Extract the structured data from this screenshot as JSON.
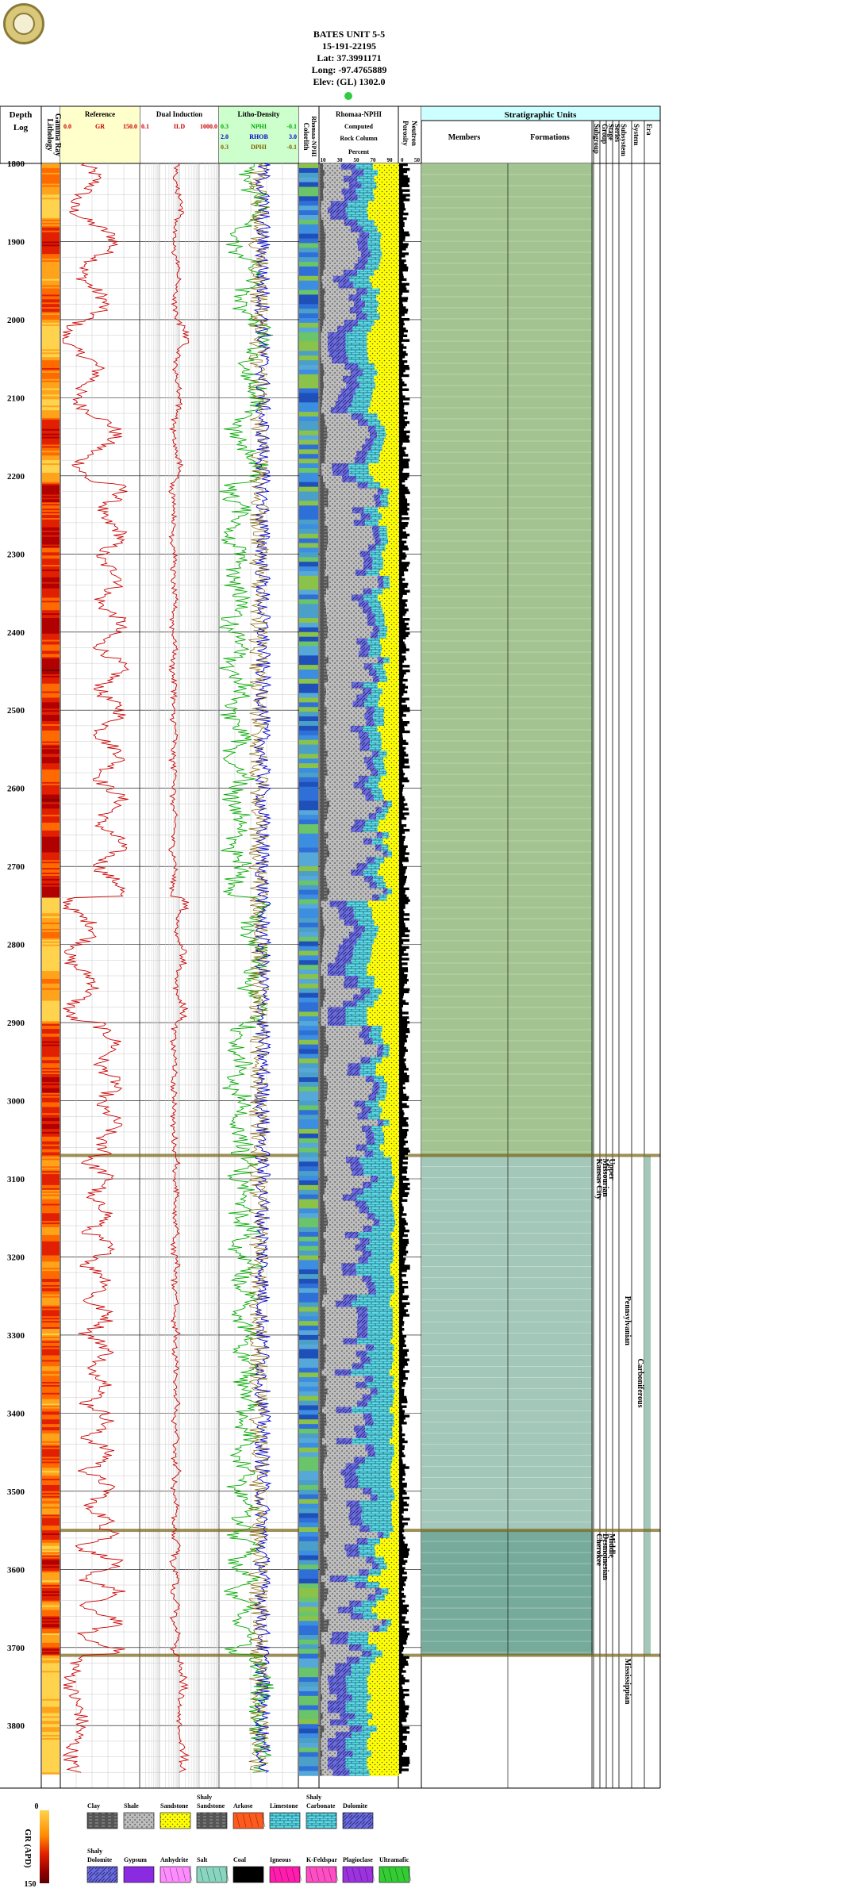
{
  "well": {
    "name": "BATES UNIT 5-5",
    "api": "15-191-22195",
    "lat": "Lat: 37.3991171",
    "long": "Long: -97.4765889",
    "elev": "Elev: (GL) 1302.0"
  },
  "colors": {
    "reference_fill": "#ffffcc",
    "lithodensity_fill": "#ccffcc",
    "strat_fill": "#ccffff",
    "members_upper": "#a3c490",
    "members_kansas_city": "#a3c7b8",
    "members_cherokee": "#76ab9c",
    "gr_curve": "#cc0000",
    "nphi_curve": "#00aa00",
    "rhob_curve": "#0000cc",
    "dphi_curve": "#806000"
  },
  "tracks": {
    "depth": {
      "title1": "Depth",
      "title2": "Log"
    },
    "lithology": {
      "title": "Lithology",
      "subtitle": "Gamma Ray"
    },
    "reference": {
      "title": "Reference",
      "min": "0.0",
      "curve": "GR",
      "max": "150.0"
    },
    "induction": {
      "title": "Dual Induction",
      "min": "0.1",
      "curve": "ILD",
      "max": "1000.0"
    },
    "lithodensity": {
      "title": "Litho-Density",
      "curves": [
        {
          "min": "0.3",
          "name": "NPHI",
          "max": "-0.1"
        },
        {
          "min": "2.0",
          "name": "RHOB",
          "max": "3.0"
        },
        {
          "min": "0.3",
          "name": "DPHI",
          "max": "-0.1"
        }
      ]
    },
    "colorlith": {
      "title": "Colorlith",
      "subtitle": "Rhomaa-NPHI"
    },
    "rockcolumn": {
      "title": "Rhomaa-NPHI",
      "line2": "Computed",
      "line3": "Rock Column",
      "line4": "Percent",
      "ticks": [
        "10",
        "30",
        "50",
        "70",
        "90"
      ]
    },
    "porosity": {
      "title": "Porosity",
      "subtitle": "Neutron",
      "ticks": [
        "0",
        "50"
      ]
    },
    "strat": {
      "title": "Stratigraphic Units",
      "members": "Members",
      "formations": "Formations",
      "cols": [
        "Subgroup",
        "Group",
        "Stage",
        "Series",
        "Subsystem",
        "System",
        "Era"
      ]
    }
  },
  "chart_data": {
    "type": "well-log",
    "depth_range": [
      1800,
      3880
    ],
    "depth_ticks": [
      1800,
      1900,
      2000,
      2100,
      2200,
      2300,
      2400,
      2500,
      2600,
      2700,
      2800,
      2900,
      3000,
      3100,
      3200,
      3300,
      3400,
      3500,
      3600,
      3700,
      3800
    ],
    "formation_tops": [
      3070,
      3550,
      3710
    ],
    "strat_units": [
      {
        "label": "Kansas City",
        "col": "Group",
        "top": 3070,
        "bottom": 3550
      },
      {
        "label": "Missourian",
        "col": "Stage",
        "top": 3070,
        "bottom": 3550
      },
      {
        "label": "Upper",
        "col": "Series",
        "top": 3070,
        "bottom": 3550
      },
      {
        "label": "Cherokee",
        "col": "Group",
        "top": 3550,
        "bottom": 3710
      },
      {
        "label": "Desmoinesian",
        "col": "Stage",
        "top": 3550,
        "bottom": 3710
      },
      {
        "label": "Middle",
        "col": "Series",
        "top": 3550,
        "bottom": 3710
      },
      {
        "label": "Pennsylvanian",
        "col": "Subsystem",
        "top": 3070,
        "bottom": 3710
      },
      {
        "label": "Carboniferous",
        "col": "System",
        "top": 3070,
        "bottom": 3710
      },
      {
        "label": "Mississippian",
        "col": "Subsystem",
        "top": 3710,
        "bottom": 3880
      }
    ],
    "gr_apd_scale": {
      "label": "GR (APD)",
      "min": "0",
      "max": "150"
    }
  },
  "legend": {
    "row1": [
      {
        "label": "Clay",
        "color": "#b5b5b5",
        "pattern": "dash"
      },
      {
        "label": "Shale",
        "color": "#bdbdbd",
        "pattern": "dots"
      },
      {
        "label": "Sandstone",
        "color": "#ffff00",
        "pattern": "dots"
      },
      {
        "label": "Shaly Sandstone",
        "color": "#ffd200",
        "pattern": "dash"
      },
      {
        "label": "Arkose",
        "color": "#ff5a1e",
        "pattern": "cross"
      },
      {
        "label": "Limestone",
        "color": "#5cd8e6",
        "pattern": "brick"
      },
      {
        "label": "Shaly Carbonate",
        "color": "#49b8a8",
        "pattern": "brick"
      },
      {
        "label": "Dolomite",
        "color": "#6a6ae0",
        "pattern": "diag"
      }
    ],
    "row2": [
      {
        "label": "Shaly Dolomite",
        "color": "#3f52d0",
        "pattern": "diag"
      },
      {
        "label": "Gypsum",
        "color": "#8a2be2",
        "pattern": "solid"
      },
      {
        "label": "Anhydrite",
        "color": "#ff8cff",
        "pattern": "cross"
      },
      {
        "label": "Salt",
        "color": "#8ad5c0",
        "pattern": "grid"
      },
      {
        "label": "Coal",
        "color": "#000000",
        "pattern": "solid"
      },
      {
        "label": "Igneous",
        "color": "#ff1cae",
        "pattern": "cross"
      },
      {
        "label": "K-Feldspar",
        "color": "#ff4dc4",
        "pattern": "cross"
      },
      {
        "label": "Plagioclase",
        "color": "#9d32e0",
        "pattern": "cross"
      },
      {
        "label": "Ultramafic",
        "color": "#33cc33",
        "pattern": "cross"
      }
    ]
  }
}
